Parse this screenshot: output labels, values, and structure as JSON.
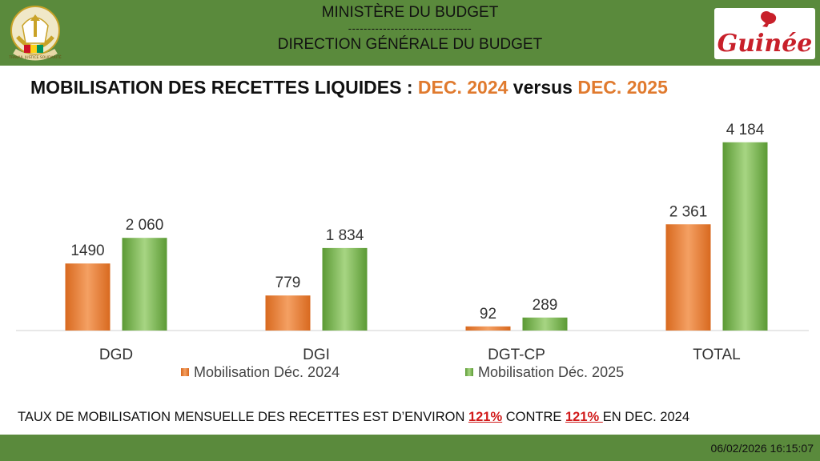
{
  "header": {
    "ministry": "MINISTÈRE DU BUDGET",
    "separator": "--------------------------------",
    "direction": "DIRECTION GÉNÉRALE DU BUDGET",
    "logo_text": "Guinée",
    "emblem_text": "TRAVAIL JUSTICE SOLIDARITÉ"
  },
  "title": {
    "part1": "MOBILISATION DES RECETTES LIQUIDES : ",
    "period1": "DEC. 2024",
    "versus": " versus ",
    "period2": "DEC. 2025"
  },
  "chart_data": {
    "type": "bar",
    "categories": [
      "DGD",
      "DGI",
      "DGT-CP",
      "TOTAL"
    ],
    "series": [
      {
        "name": "Mobilisation Déc. 2024",
        "values": [
          1490,
          779,
          92,
          2361
        ],
        "labels": [
          "1490",
          "779",
          "92",
          "2 361"
        ],
        "color": "#e8823a"
      },
      {
        "name": "Mobilisation Déc. 2025",
        "values": [
          2060,
          1834,
          289,
          4184
        ],
        "labels": [
          "2 060",
          "1 834",
          "289",
          "4 184"
        ],
        "color": "#74b24a"
      }
    ],
    "ylim": [
      0,
      4500
    ],
    "legend_position": "bottom"
  },
  "bottom": {
    "text_before": "TAUX DE MOBILISATION MENSUELLE DES RECETTES EST D’ENVIRON ",
    "rate_2025": "121%",
    "text_middle": " CONTRE ",
    "rate_2024": "121% ",
    "text_after": "EN DEC. 2024"
  },
  "footer": {
    "timestamp": "06/02/2026 16:15:07"
  }
}
